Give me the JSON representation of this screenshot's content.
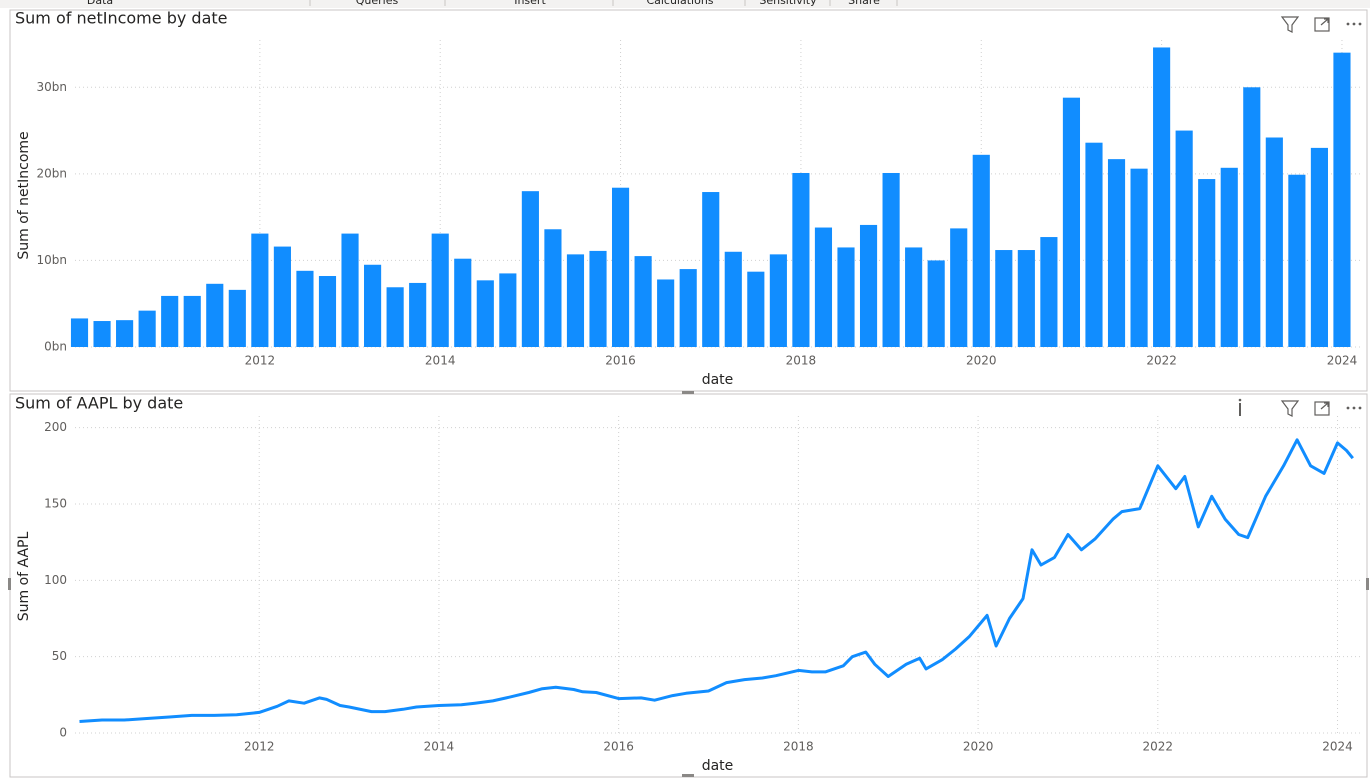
{
  "ribbon_tabs": [
    "Data",
    "Queries",
    "Insert",
    "Calculations",
    "Sensitivity",
    "Share"
  ],
  "chart_data": [
    {
      "type": "bar",
      "title": "Sum of netIncome by date",
      "x_label": "date",
      "y_label": "Sum of netIncome",
      "color": "#118dff",
      "grid": true,
      "x": [
        2010,
        2010.25,
        2010.5,
        2010.75,
        2011,
        2011.25,
        2011.5,
        2011.75,
        2012,
        2012.25,
        2012.5,
        2012.75,
        2013,
        2013.25,
        2013.5,
        2013.75,
        2014,
        2014.25,
        2014.5,
        2014.75,
        2015,
        2015.25,
        2015.5,
        2015.75,
        2016,
        2016.25,
        2016.5,
        2016.75,
        2017,
        2017.25,
        2017.5,
        2017.75,
        2018,
        2018.25,
        2018.5,
        2018.75,
        2019,
        2019.25,
        2019.5,
        2019.75,
        2020,
        2020.25,
        2020.5,
        2020.75,
        2021,
        2021.25,
        2021.5,
        2021.75,
        2022,
        2022.25,
        2022.5,
        2022.75,
        2023,
        2023.25,
        2023.5,
        2023.75,
        2024
      ],
      "values": [
        3.3,
        3.0,
        3.1,
        4.2,
        5.9,
        5.9,
        7.3,
        6.6,
        13.1,
        11.6,
        8.8,
        8.2,
        13.1,
        9.5,
        6.9,
        7.4,
        13.1,
        10.2,
        7.7,
        8.5,
        18.0,
        13.6,
        10.7,
        11.1,
        18.4,
        10.5,
        7.8,
        9.0,
        17.9,
        11.0,
        8.7,
        10.7,
        20.1,
        13.8,
        11.5,
        14.1,
        20.1,
        11.5,
        10.0,
        13.7,
        22.2,
        11.2,
        11.2,
        12.7,
        28.8,
        23.6,
        21.7,
        20.6,
        34.6,
        25.0,
        19.4,
        20.7,
        30.0,
        24.2,
        19.9,
        23.0,
        34.0
      ],
      "xlim": [
        2009.95,
        2024.2
      ],
      "xticks": [
        2012,
        2014,
        2016,
        2018,
        2020,
        2022,
        2024
      ],
      "ylim": [
        0,
        35
      ],
      "yticks": [
        {
          "value": 0,
          "label": "0bn"
        },
        {
          "value": 10,
          "label": "10bn"
        },
        {
          "value": 20,
          "label": "20bn"
        },
        {
          "value": 30,
          "label": "30bn"
        }
      ]
    },
    {
      "type": "line",
      "title": "Sum of AAPL by date",
      "x_label": "date",
      "y_label": "Sum of AAPL",
      "color": "#118dff",
      "grid": true,
      "x": [
        2010.0,
        2010.25,
        2010.5,
        2010.75,
        2011.0,
        2011.25,
        2011.5,
        2011.75,
        2012.0,
        2012.2,
        2012.33,
        2012.5,
        2012.67,
        2012.75,
        2012.9,
        2013.0,
        2013.25,
        2013.4,
        2013.6,
        2013.75,
        2014.0,
        2014.25,
        2014.4,
        2014.6,
        2014.75,
        2015.0,
        2015.15,
        2015.3,
        2015.5,
        2015.6,
        2015.75,
        2016.0,
        2016.25,
        2016.4,
        2016.6,
        2016.75,
        2017.0,
        2017.2,
        2017.4,
        2017.6,
        2017.75,
        2018.0,
        2018.15,
        2018.3,
        2018.5,
        2018.6,
        2018.75,
        2018.85,
        2019.0,
        2019.2,
        2019.35,
        2019.42,
        2019.6,
        2019.75,
        2019.9,
        2020.1,
        2020.2,
        2020.35,
        2020.5,
        2020.6,
        2020.7,
        2020.85,
        2021.0,
        2021.15,
        2021.3,
        2021.5,
        2021.6,
        2021.8,
        2022.0,
        2022.2,
        2022.3,
        2022.45,
        2022.6,
        2022.75,
        2022.9,
        2023.0,
        2023.2,
        2023.4,
        2023.55,
        2023.7,
        2023.85,
        2024.0,
        2024.1,
        2024.17
      ],
      "values": [
        7.5,
        8.5,
        8.5,
        9.5,
        10.5,
        11.5,
        11.5,
        12,
        13.5,
        17.5,
        21,
        19.5,
        23,
        22,
        18,
        17,
        14,
        14,
        15.5,
        17,
        18,
        18.5,
        19.5,
        21,
        23,
        26.5,
        29,
        30,
        28.5,
        27,
        26.5,
        22.5,
        23,
        21.5,
        24.5,
        26,
        27.5,
        33,
        35,
        36,
        37.5,
        41,
        40,
        40,
        44,
        50,
        53,
        45,
        37,
        45,
        49,
        42,
        48,
        55,
        63,
        77,
        57,
        75,
        88,
        120,
        110,
        115,
        130,
        120,
        127,
        140,
        145,
        147,
        175,
        160,
        168,
        135,
        155,
        140,
        130,
        128,
        155,
        175,
        192,
        175,
        170,
        190,
        185,
        180
      ],
      "xlim": [
        2009.95,
        2024.25
      ],
      "xticks": [
        2012,
        2014,
        2016,
        2018,
        2020,
        2022,
        2024
      ],
      "ylim": [
        0,
        205
      ],
      "yticks": [
        0,
        50,
        100,
        150,
        200
      ]
    }
  ]
}
